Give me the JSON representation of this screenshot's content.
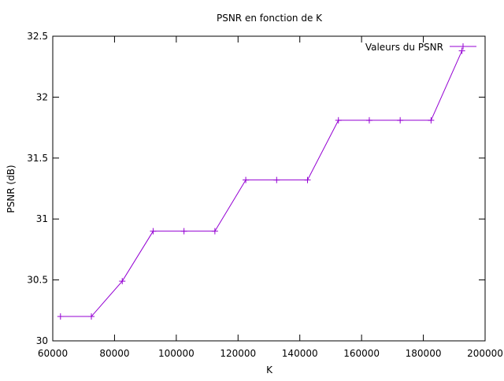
{
  "chart_data": {
    "type": "line",
    "title": "PSNR en fonction de K",
    "xlabel": "K",
    "ylabel": "PSNR (dB)",
    "xlim": [
      60000,
      200000
    ],
    "ylim": [
      30,
      32.5
    ],
    "xticks": [
      60000,
      80000,
      100000,
      120000,
      140000,
      160000,
      180000,
      200000
    ],
    "yticks": [
      30,
      30.5,
      31,
      31.5,
      32,
      32.5
    ],
    "xtick_labels": [
      "60000",
      "80000",
      "100000",
      "120000",
      "140000",
      "160000",
      "180000",
      "200000"
    ],
    "ytick_labels": [
      "30",
      "30.5",
      "31",
      "31.5",
      "32",
      "32.5"
    ],
    "grid": false,
    "legend_position": "top-right",
    "series": [
      {
        "name": "Valeurs du PSNR",
        "color": "#9400d3",
        "marker": "plus",
        "x": [
          62500,
          72500,
          82500,
          92500,
          102500,
          112500,
          122500,
          132500,
          142500,
          152500,
          162500,
          172500,
          182500,
          192500
        ],
        "y": [
          30.2,
          30.2,
          30.49,
          30.9,
          30.9,
          30.9,
          31.32,
          31.32,
          31.32,
          31.81,
          31.81,
          31.81,
          31.81,
          32.38
        ]
      }
    ]
  }
}
